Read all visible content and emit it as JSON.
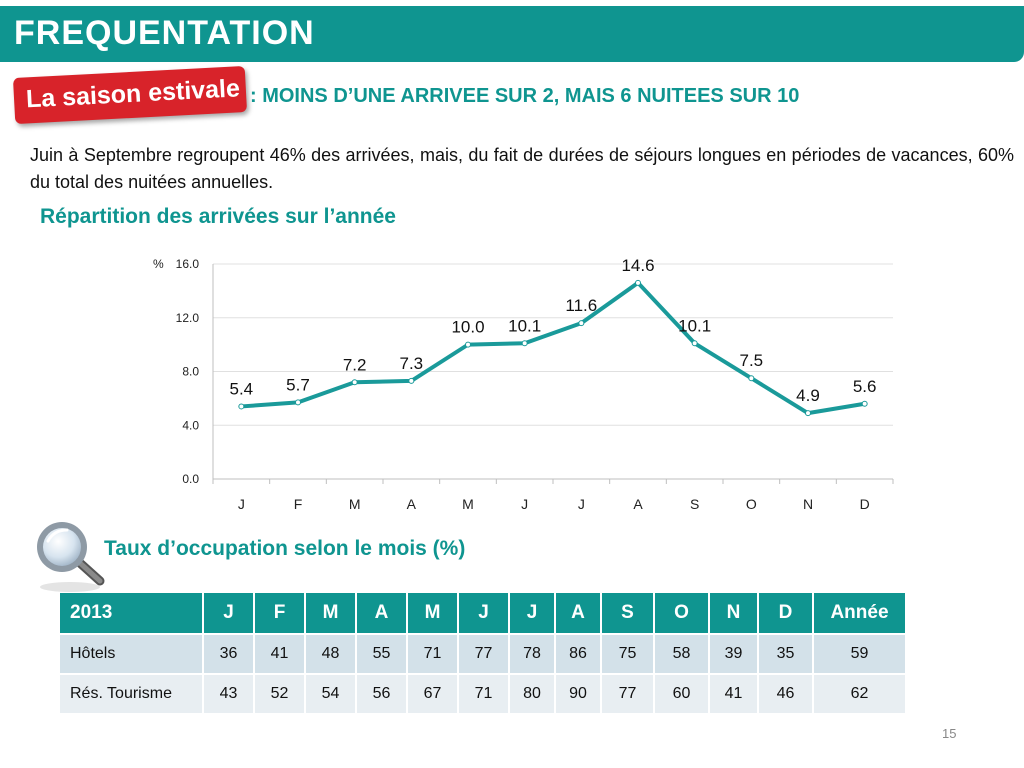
{
  "header": {
    "title": "FREQUENTATION"
  },
  "banner": {
    "label": "La saison estivale"
  },
  "subtitle": ": MOINS D’UNE ARRIVEE SUR 2, MAIS 6 NUITEES SUR 10",
  "intro": "Juin à Septembre regroupent 46% des arrivées, mais, du fait de durées de séjours longues en périodes de vacances, 60% du total des nuitées annuelles.",
  "chart_section": {
    "title": "Répartition des arrivées sur l’année"
  },
  "chart_data": {
    "type": "line",
    "title": "",
    "ylabel": "%",
    "categories": [
      "J",
      "F",
      "M",
      "A",
      "M",
      "J",
      "J",
      "A",
      "S",
      "O",
      "N",
      "D"
    ],
    "series": [
      {
        "values": [
          5.4,
          5.7,
          7.2,
          7.3,
          10.0,
          10.1,
          11.6,
          14.6,
          10.1,
          7.5,
          4.9,
          5.6
        ]
      }
    ],
    "value_labels": [
      "5.4",
      "5.7",
      "7.2",
      "7.3",
      "10.0",
      "10.1",
      "11.6",
      "14.6",
      "10.1",
      "7.5",
      "4.9",
      "5.6"
    ],
    "yticks": [
      "0.0",
      "4.0",
      "8.0",
      "12.0",
      "16.0"
    ],
    "ylim": [
      0,
      16
    ],
    "grid": true,
    "line_color": "#1a9a9a"
  },
  "occupancy": {
    "title": "Taux d’occupation selon le mois (%)",
    "icon": "magnifier-icon",
    "headers": [
      "2013",
      "J",
      "F",
      "M",
      "A",
      "M",
      "J",
      "J",
      "A",
      "S",
      "O",
      "N",
      "D",
      "Année"
    ],
    "rows": [
      [
        "Hôtels",
        "36",
        "41",
        "48",
        "55",
        "71",
        "77",
        "78",
        "86",
        "75",
        "58",
        "39",
        "35",
        "59"
      ],
      [
        "Rés. Tourisme",
        "43",
        "52",
        "54",
        "56",
        "67",
        "71",
        "80",
        "90",
        "77",
        "60",
        "41",
        "46",
        "62"
      ]
    ]
  },
  "footer": {
    "page_number": "15"
  },
  "colors": {
    "accent": "#0f9590",
    "banner": "#d8232a"
  }
}
